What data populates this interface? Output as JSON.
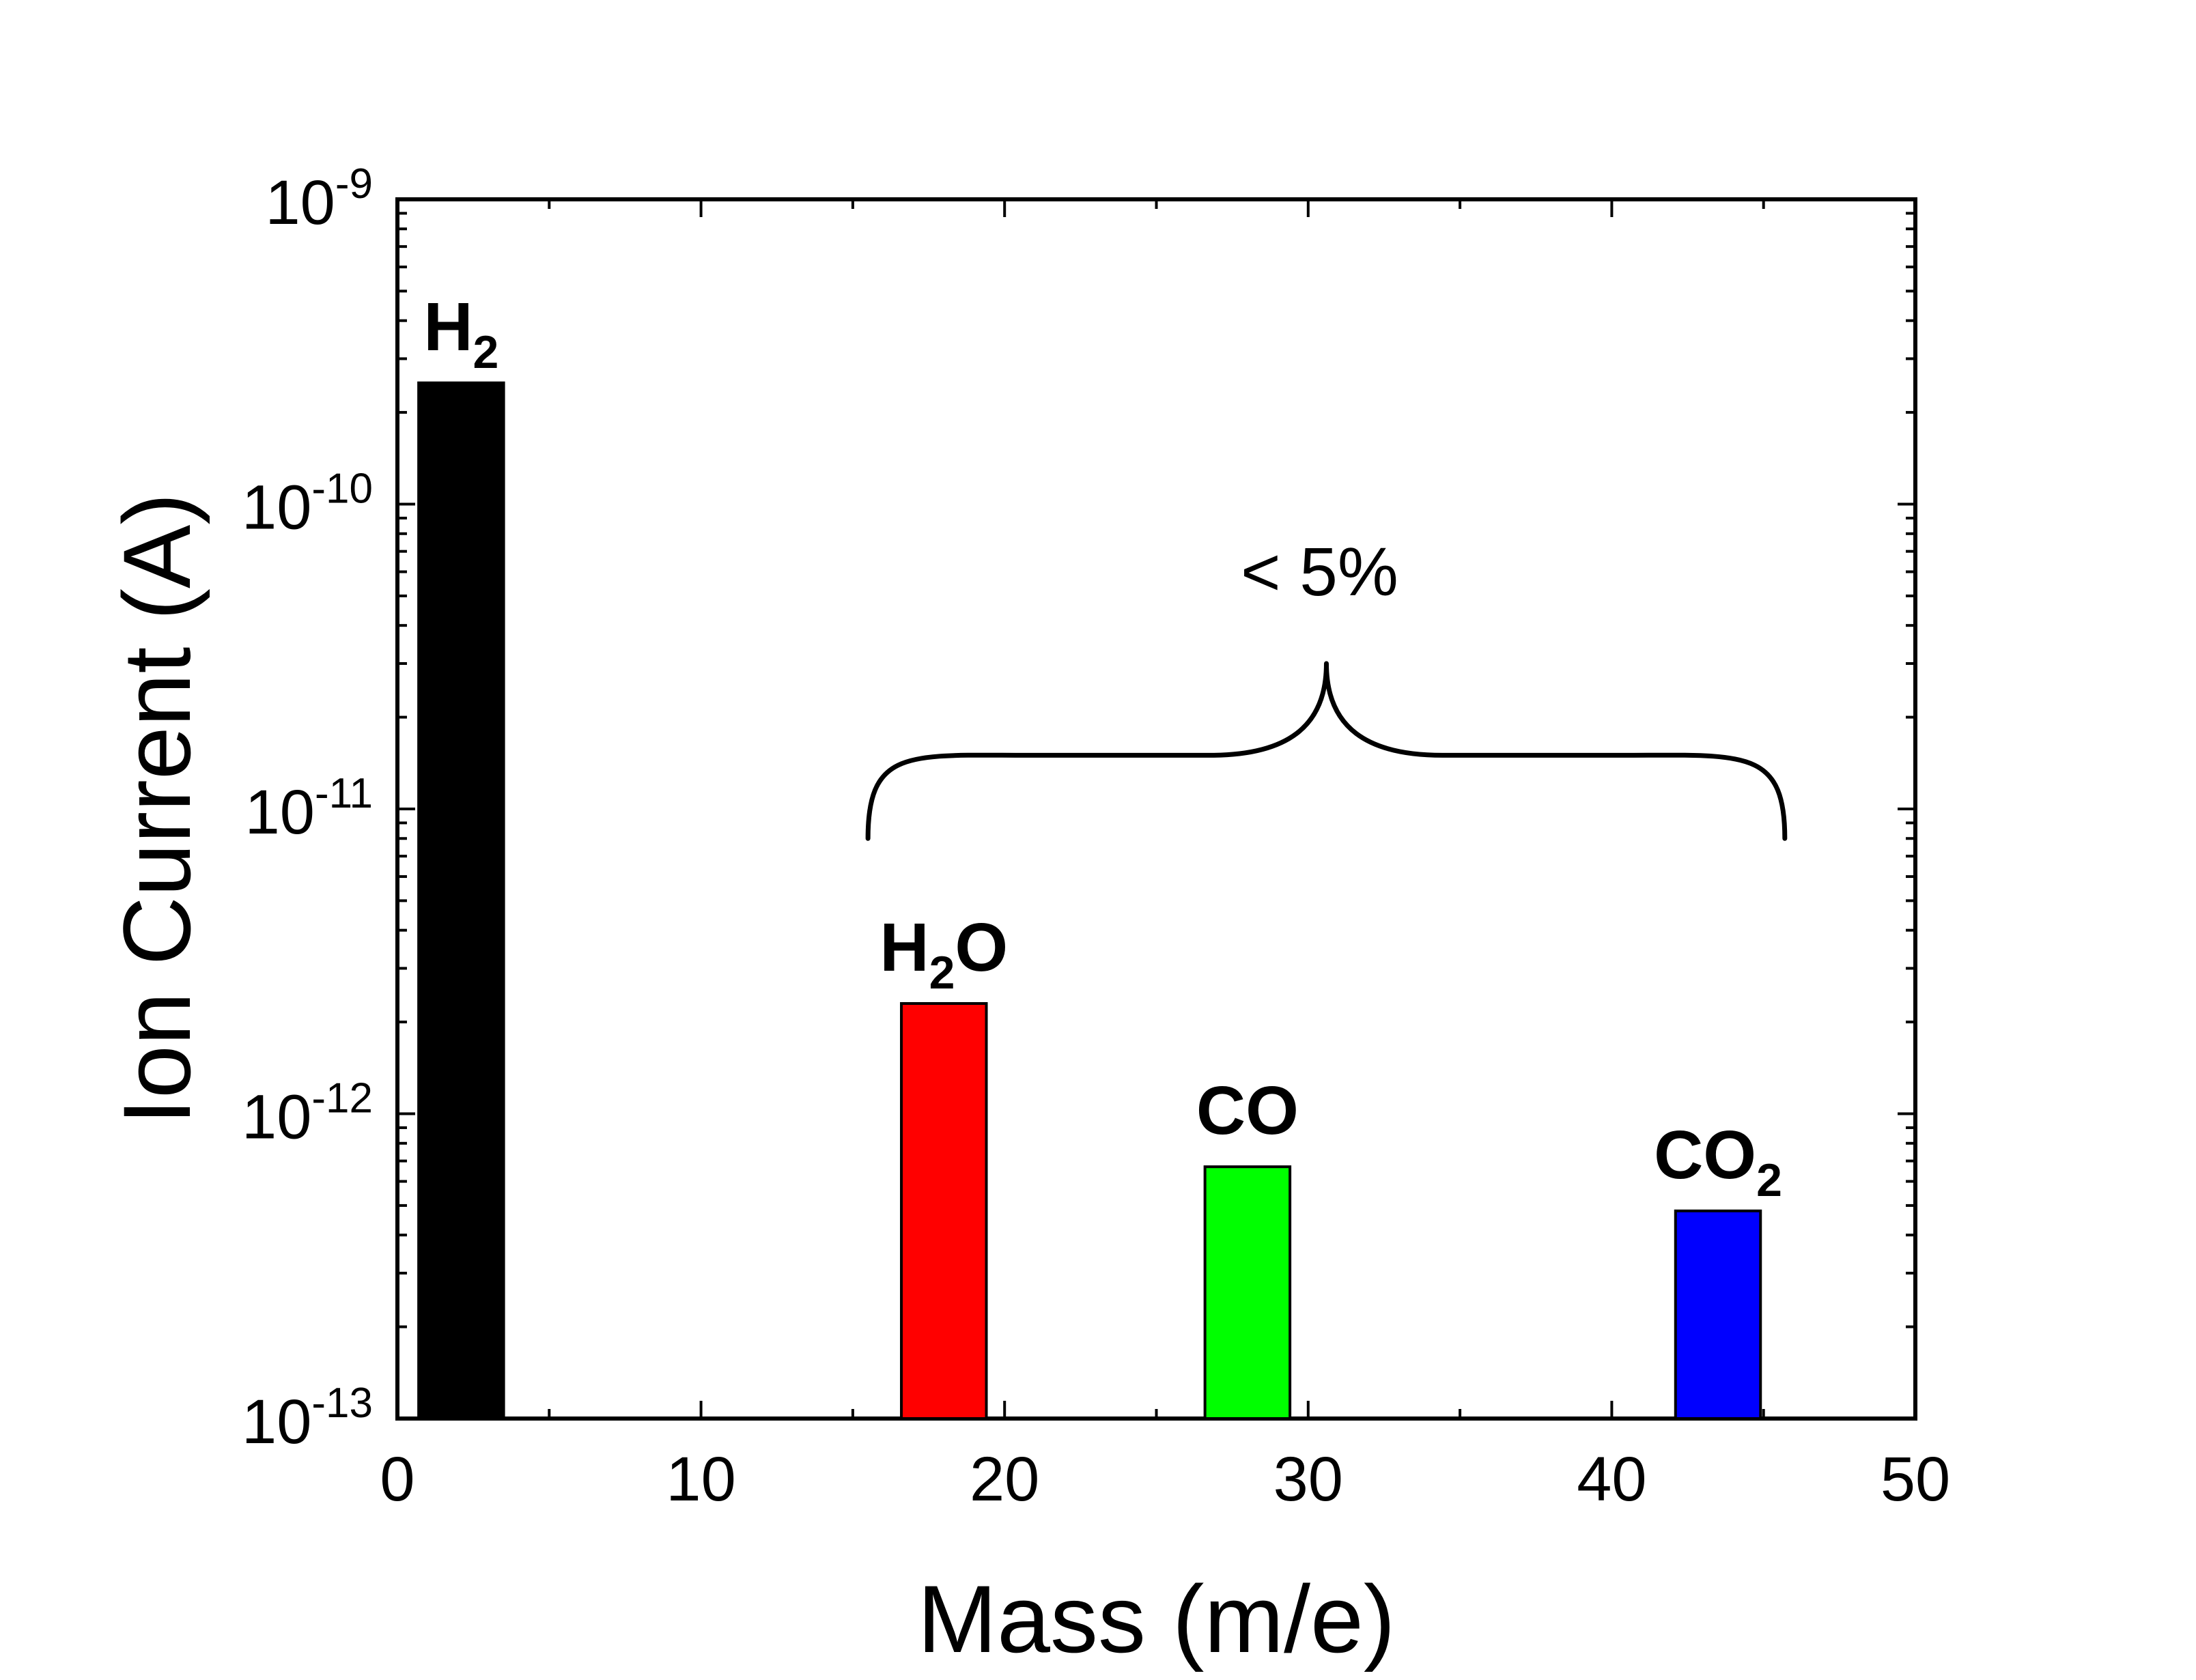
{
  "chart_data": {
    "type": "bar",
    "title": "",
    "xlabel": "Mass (m/e)",
    "ylabel": "Ion Current (A)",
    "x_axis": {
      "min": 0,
      "max": 50,
      "ticks": [
        "0",
        "10",
        "20",
        "30",
        "40",
        "50"
      ]
    },
    "y_axis": {
      "scale": "log",
      "min": 1e-13,
      "max": 1e-09,
      "ticks": [
        {
          "base": "10",
          "exp": "-13"
        },
        {
          "base": "10",
          "exp": "-12"
        },
        {
          "base": "10",
          "exp": "-11"
        },
        {
          "base": "10",
          "exp": "-10"
        },
        {
          "base": "10",
          "exp": "-9"
        }
      ]
    },
    "bars": [
      {
        "name": "H2",
        "label_main": "H",
        "label_sub": "2",
        "label_tail": "",
        "mass": 2,
        "x_start": 0.7,
        "x_end": 3.5,
        "value": 2.5e-10,
        "color": "#000000"
      },
      {
        "name": "H2O",
        "label_main": "H",
        "label_sub": "2",
        "label_tail": "O",
        "mass": 18,
        "x_start": 16.6,
        "x_end": 19.4,
        "value": 2.3e-12,
        "color": "#ff0000"
      },
      {
        "name": "CO",
        "label_main": "CO",
        "label_sub": "",
        "label_tail": "",
        "mass": 28,
        "x_start": 26.6,
        "x_end": 29.4,
        "value": 6.7e-13,
        "color": "#00ff00"
      },
      {
        "name": "CO2",
        "label_main": "CO",
        "label_sub": "2",
        "label_tail": "",
        "mass": 44,
        "x_start": 42.1,
        "x_end": 44.9,
        "value": 4.8e-13,
        "color": "#0000ff"
      }
    ],
    "annotation": {
      "text": "< 5%",
      "bracket_x_start": 15.5,
      "bracket_x_end": 45.7,
      "bracket_y_low": 8e-12,
      "bracket_y_mid": 1.5e-11,
      "bracket_y_tip": 3e-11
    },
    "grid": false,
    "legend": "none"
  }
}
